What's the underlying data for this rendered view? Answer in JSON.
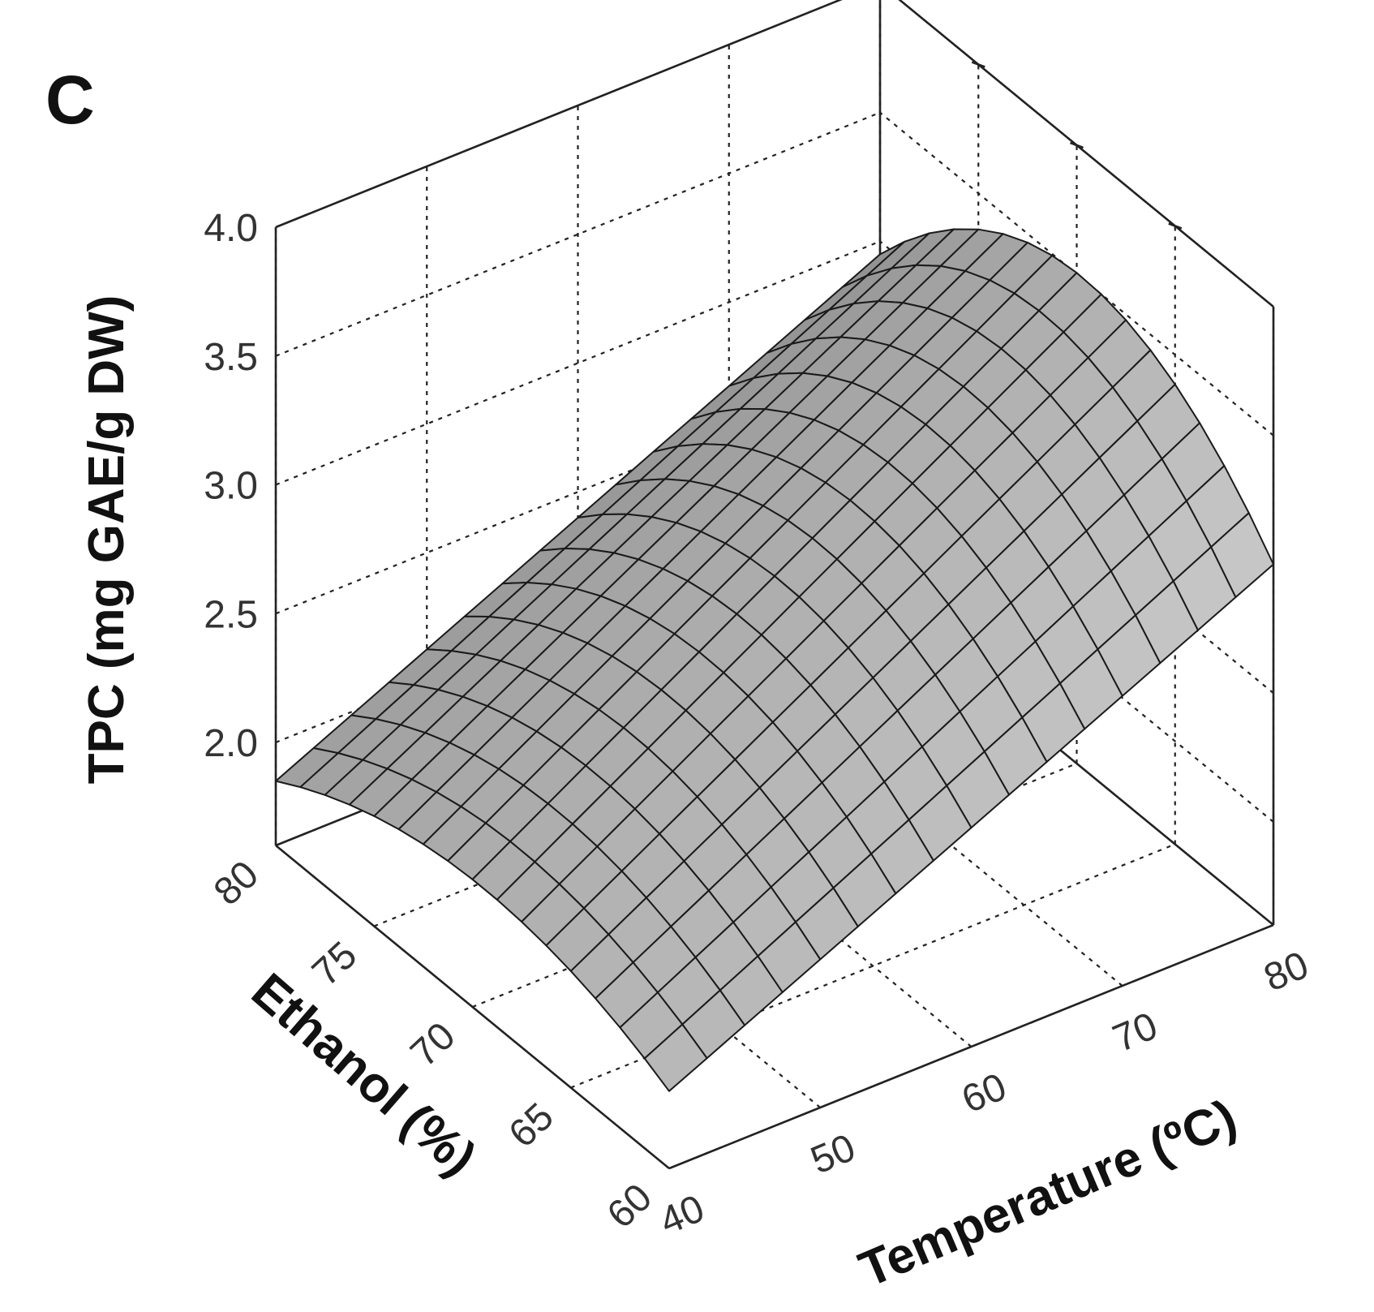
{
  "chart_data": {
    "type": "surface",
    "panel_label": "C",
    "zlabel": "TPC (mg GAE/g DW)",
    "xlabel": "Temperature (ºC)",
    "ylabel": "Ethanol (%)",
    "x_range": [
      40,
      80
    ],
    "y_range": [
      60,
      80
    ],
    "z_range": [
      1.6,
      4.0
    ],
    "x_ticks": [
      "40",
      "50",
      "60",
      "70",
      "80"
    ],
    "y_ticks": [
      "60",
      "65",
      "70",
      "75",
      "80"
    ],
    "z_ticks": [
      "2.0",
      "2.5",
      "3.0",
      "3.5",
      "4.0"
    ],
    "grid": true,
    "surface_color": "#a8a8a8",
    "corner_values": [
      {
        "temperature": 40,
        "ethanol": 60,
        "tpc": 1.9
      },
      {
        "temperature": 40,
        "ethanol": 80,
        "tpc": 1.85
      },
      {
        "temperature": 80,
        "ethanol": 60,
        "tpc": 3.0
      },
      {
        "temperature": 80,
        "ethanol": 80,
        "tpc": 2.95
      },
      {
        "temperature": 40,
        "ethanol": 70,
        "tpc": 2.12
      },
      {
        "temperature": 80,
        "ethanol": 70,
        "tpc": 3.53
      }
    ]
  }
}
